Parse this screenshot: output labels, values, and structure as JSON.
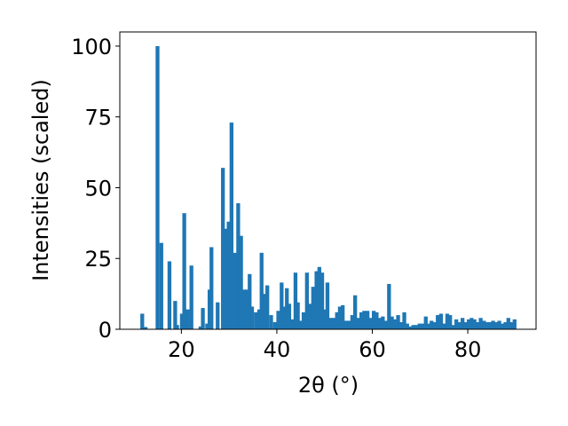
{
  "chart_data": {
    "type": "bar",
    "xlabel": "2θ (°)",
    "ylabel": "Intensities (scaled)",
    "xlim": [
      7.1,
      94.3
    ],
    "ylim": [
      0,
      105
    ],
    "xticks": [
      20,
      40,
      60,
      80
    ],
    "yticks": [
      0,
      25,
      50,
      75,
      100
    ],
    "bar_width": 0.8,
    "bar_color": "#1f77b4",
    "grid": false,
    "legend": "none",
    "series": [
      {
        "x": [
          11.8,
          12.5,
          15.0,
          15.8,
          17.5,
          18.7,
          19.1,
          20.1,
          20.6,
          21.3,
          22.1,
          24.0,
          24.5,
          25.4,
          25.9,
          26.3,
          27.6,
          28.7,
          29.3,
          29.9,
          30.5,
          31.3,
          31.9,
          32.5,
          33.2,
          33.7,
          34.3,
          34.8,
          35.6,
          36.3,
          36.8,
          37.5,
          38.0,
          38.8,
          39.6,
          40.3,
          41.0,
          41.5,
          42.1,
          42.6,
          43.2,
          43.9,
          44.4,
          45.0,
          45.6,
          46.3,
          47.0,
          47.6,
          48.3,
          48.9,
          49.5,
          50.0,
          50.6,
          51.3,
          51.9,
          52.6,
          53.2,
          53.8,
          54.5,
          55.1,
          55.8,
          56.4,
          57.1,
          57.7,
          58.3,
          59.0,
          59.6,
          60.3,
          60.9,
          61.5,
          62.2,
          62.8,
          63.5,
          64.1,
          64.7,
          65.4,
          66.0,
          66.7,
          67.3,
          67.9,
          68.6,
          69.2,
          69.9,
          70.5,
          71.2,
          71.8,
          72.4,
          73.1,
          73.7,
          74.4,
          75.0,
          75.7,
          76.3,
          76.9,
          77.6,
          78.2,
          78.9,
          79.5,
          80.2,
          80.8,
          81.4,
          82.1,
          82.7,
          83.4,
          84.0,
          84.7,
          85.3,
          85.9,
          86.6,
          87.2,
          87.9,
          88.5,
          89.2,
          89.8
        ],
        "values": [
          5.5,
          0.8,
          100,
          30.5,
          24,
          10,
          1.5,
          5.5,
          41,
          7,
          22.5,
          1,
          7.5,
          2,
          14,
          29,
          9.5,
          57,
          35.5,
          38,
          73,
          27,
          44.5,
          33,
          14,
          14,
          19.5,
          8,
          6,
          7,
          27,
          12.5,
          15.5,
          5,
          2.5,
          6.5,
          16.5,
          8,
          14.5,
          9,
          3.5,
          20,
          9.5,
          3,
          6,
          20,
          9,
          15,
          20.5,
          22,
          20,
          7,
          16.5,
          4,
          4,
          6,
          8,
          8.5,
          3,
          3,
          5,
          12,
          4,
          6,
          6.5,
          6.5,
          4,
          6.5,
          6,
          4,
          4.5,
          3,
          16,
          4.5,
          3.5,
          5,
          2.5,
          6,
          2,
          1,
          1.5,
          1.5,
          2,
          2,
          4.5,
          2,
          3,
          2.5,
          5,
          5.5,
          2,
          5.5,
          5,
          1.5,
          3.5,
          2.5,
          4,
          2.5,
          3.5,
          4,
          3.5,
          2.5,
          4,
          3,
          2.5,
          2.5,
          3,
          2.5,
          3,
          2,
          2.5,
          4,
          2.5,
          3.5
        ]
      }
    ]
  }
}
